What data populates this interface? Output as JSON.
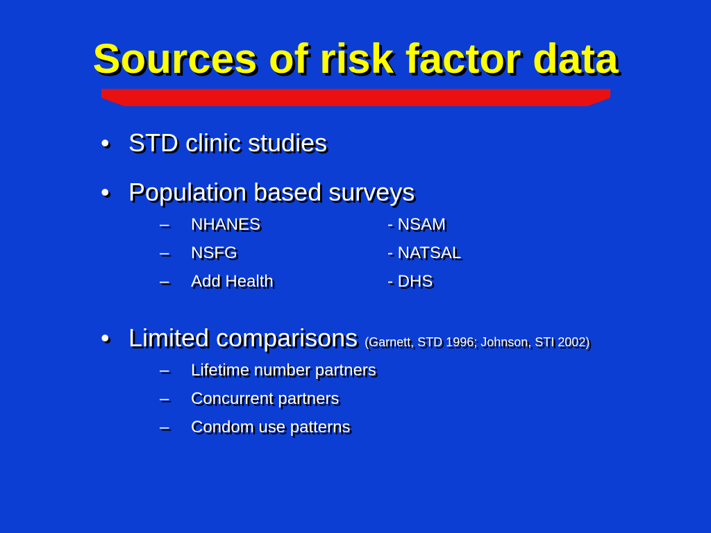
{
  "slide": {
    "title": "Sources of risk factor data",
    "colors": {
      "background": "#0c3ed4",
      "title": "#ffff00",
      "accent_bar": "#e81010",
      "text": "#ffffff"
    },
    "bullet_glyph": "•",
    "dash_glyph": "–",
    "bullets": [
      {
        "text": "STD clinic studies"
      },
      {
        "text": "Population based surveys",
        "sub_items": [
          {
            "left": "NHANES",
            "right": "- NSAM"
          },
          {
            "left": "NSFG",
            "right": "- NATSAL"
          },
          {
            "left": "Add Health",
            "right": "- DHS"
          }
        ]
      },
      {
        "text": "Limited comparisons",
        "citation": "(Garnett, STD 1996; Johnson, STI 2002)",
        "sub_items": [
          {
            "left": "Lifetime number partners"
          },
          {
            "left": "Concurrent partners"
          },
          {
            "left": "Condom use patterns"
          }
        ]
      }
    ]
  }
}
